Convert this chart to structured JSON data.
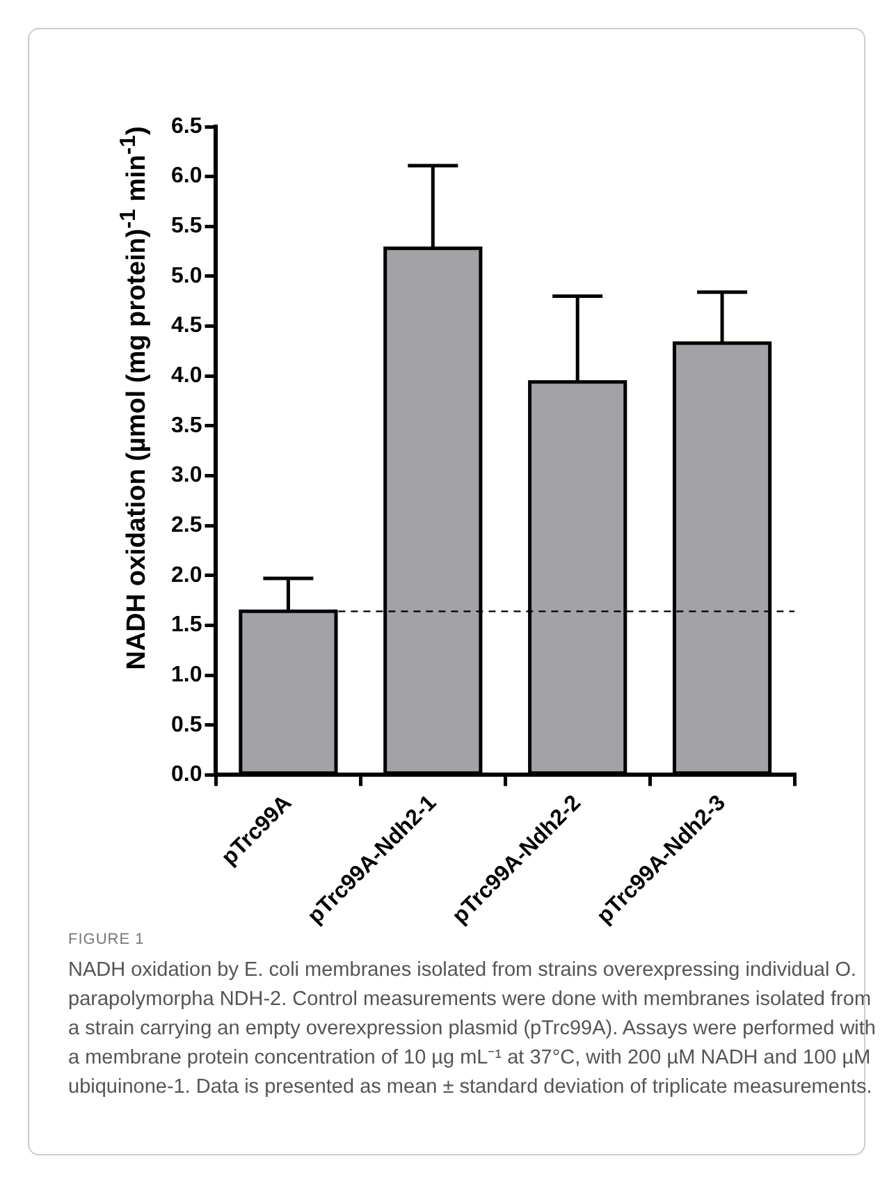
{
  "chart_data": {
    "type": "bar",
    "ylabel": "NADH oxidation (µmol (mg protein)$^{-1}$ min$^{-1}$)",
    "categories": [
      "pTrc99A",
      "pTrc99A-Ndh2-1",
      "pTrc99A-Ndh2-2",
      "pTrc99A-Ndh2-3"
    ],
    "values": [
      1.64,
      5.28,
      3.94,
      4.33
    ],
    "errors": [
      [
        1.64,
        1.97
      ],
      [
        5.28,
        6.11
      ],
      [
        3.94,
        4.8
      ],
      [
        4.33,
        4.84
      ]
    ],
    "color": "#a3a2a7",
    "ylim": [
      0,
      6.5
    ],
    "yticks": [
      {
        "value": 0,
        "label": "0.0"
      },
      {
        "value": 0.5,
        "label": "0.5"
      },
      {
        "value": 1,
        "label": "1.0"
      },
      {
        "value": 1.5,
        "label": "1.5"
      },
      {
        "value": 2,
        "label": "2.0"
      },
      {
        "value": 2.5,
        "label": "2.5"
      },
      {
        "value": 3,
        "label": "3.0"
      },
      {
        "value": 3.5,
        "label": "3.5"
      },
      {
        "value": 4,
        "label": "4.0"
      },
      {
        "value": 4.5,
        "label": "4.5"
      },
      {
        "value": 5,
        "label": "5.0"
      },
      {
        "value": 5.5,
        "label": "5.5"
      },
      {
        "value": 6,
        "label": "6.0"
      },
      {
        "value": 6.5,
        "label": "6.5"
      }
    ],
    "ref_lines": [
      {
        "axis": "y",
        "value": 1.64,
        "line_style": "dashed"
      }
    ],
    "grid": false,
    "legend": false,
    "annotations": [
      "FIGURE 1",
      "NADH oxidation by E. coli membranes isolated from strains overexpressing individual O. parapolymorpha NDH-2. Control measurements were done with membranes isolated from a strain carrying an empty overexpression plasmid (pTrc99A). Assays were performed with a membrane protein concentration of 10 µg mL⁻¹ at 37°C, with 200 µM NADH and 100 µM ubiquinone-1. Data is presented as mean ± standard deviation of triplicate measurements."
    ]
  }
}
